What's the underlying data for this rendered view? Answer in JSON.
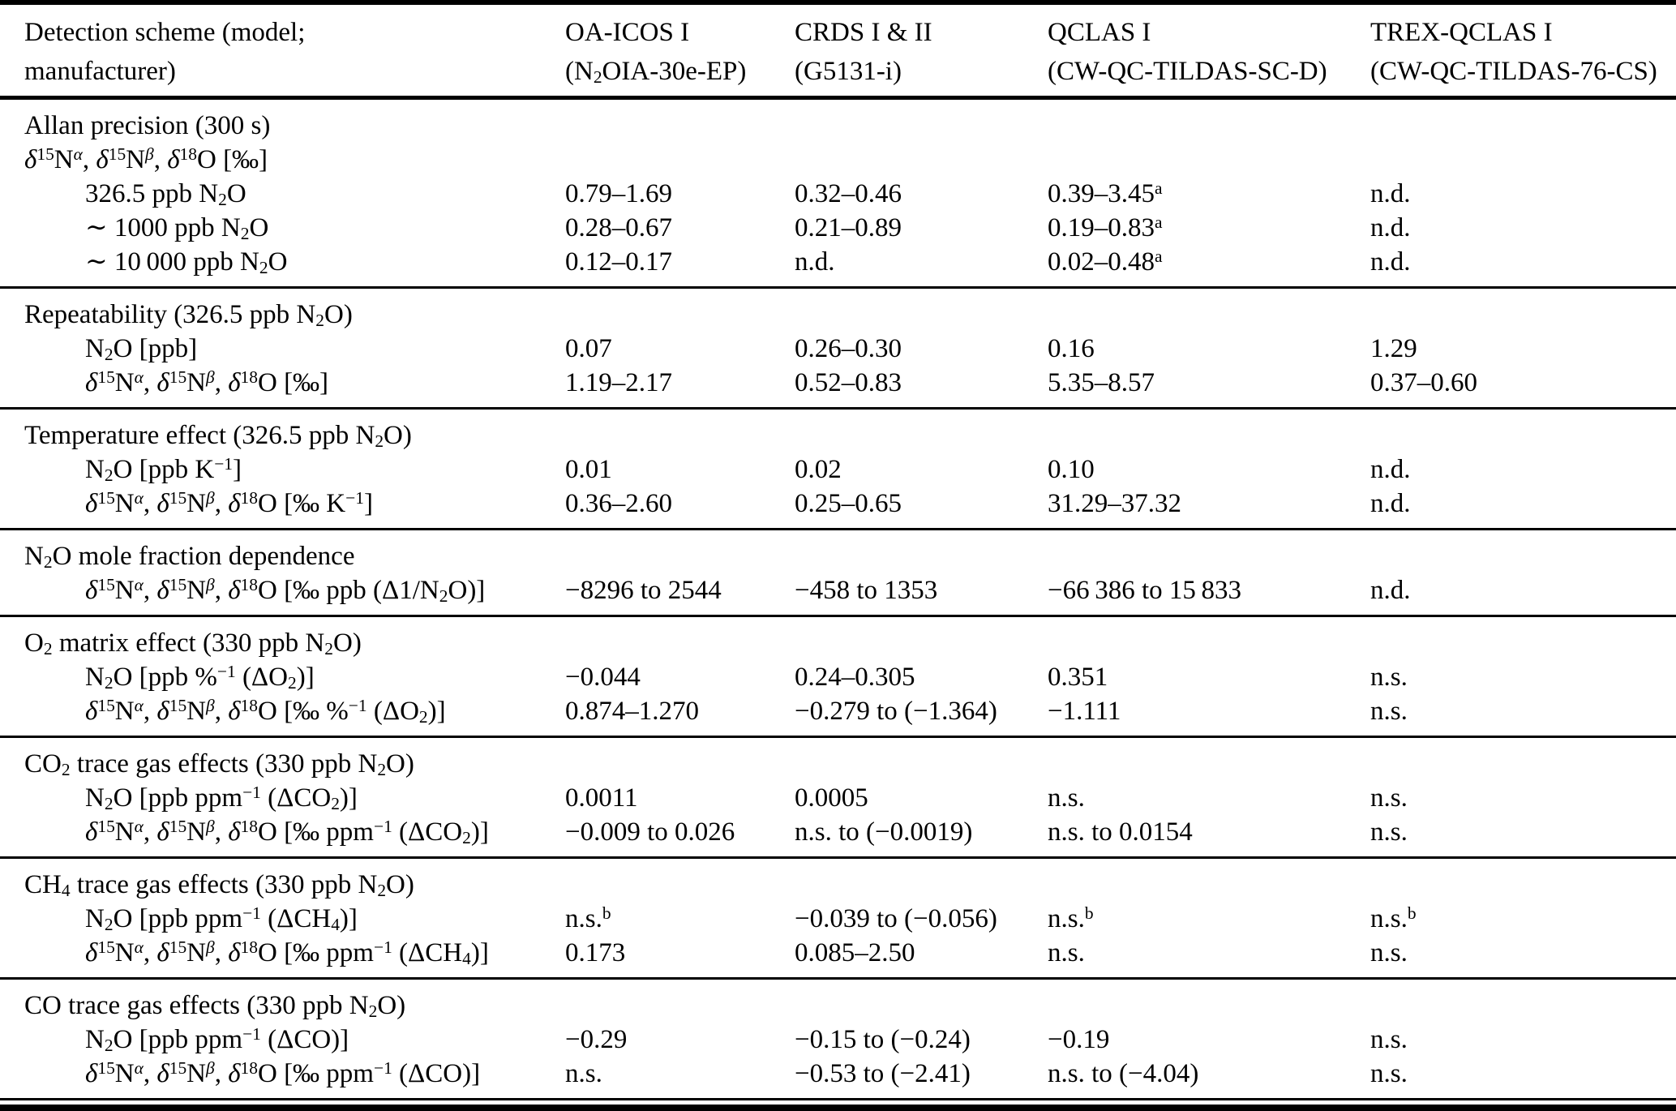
{
  "colors": {
    "background": "#ffffff",
    "text": "#000000",
    "rule": "#000000"
  },
  "table": {
    "header": [
      {
        "line1": "Detection scheme (model;",
        "line2": "manufacturer)"
      },
      {
        "line1": "OA-ICOS I",
        "line2": "(N<sub>2</sub>OIA-30e-EP)"
      },
      {
        "line1": "CRDS I & II",
        "line2": "(G5131-i)"
      },
      {
        "line1": "QCLAS I",
        "line2": "(CW-QC-TILDAS-SC-D)"
      },
      {
        "line1": "TREX-QCLAS I",
        "line2": "(CW-QC-TILDAS-76-CS)"
      }
    ],
    "sections": [
      {
        "id": "allan-precision",
        "title": "Allan precision (300 s)",
        "subtitle": "<i>δ</i><sup>15</sup>N<sup><i>α</i></sup>, <i>δ</i><sup>15</sup>N<sup><i>β</i></sup>, <i>δ</i><sup>18</sup>O [‰]",
        "rows": [
          {
            "label": "326.5 ppb N<sub>2</sub>O",
            "values": [
              "0.79–1.69",
              "0.32–0.46",
              "0.39–3.45<sup>a</sup>",
              "n.d."
            ]
          },
          {
            "label": "∼ 1000 ppb N<sub>2</sub>O",
            "values": [
              "0.28–0.67",
              "0.21–0.89",
              "0.19–0.83<sup>a</sup>",
              "n.d."
            ]
          },
          {
            "label": "∼ 10&#8201;000 ppb N<sub>2</sub>O",
            "values": [
              "0.12–0.17",
              "n.d.",
              "0.02–0.48<sup>a</sup>",
              "n.d."
            ]
          }
        ]
      },
      {
        "id": "repeatability",
        "title": "Repeatability (326.5 ppb N<sub>2</sub>O)",
        "rows": [
          {
            "label": "N<sub>2</sub>O [ppb]",
            "values": [
              "0.07",
              "0.26–0.30",
              "0.16",
              "1.29"
            ]
          },
          {
            "label": "<i>δ</i><sup>15</sup>N<sup><i>α</i></sup>, <i>δ</i><sup>15</sup>N<sup><i>β</i></sup>, <i>δ</i><sup>18</sup>O [‰]",
            "values": [
              "1.19–2.17",
              "0.52–0.83",
              "5.35–8.57",
              "0.37–0.60"
            ]
          }
        ]
      },
      {
        "id": "temperature-effect",
        "title": "Temperature effect (326.5 ppb N<sub>2</sub>O)",
        "rows": [
          {
            "label": "N<sub>2</sub>O [ppb K<sup>−1</sup>]",
            "values": [
              "0.01",
              "0.02",
              "0.10",
              "n.d."
            ]
          },
          {
            "label": "<i>δ</i><sup>15</sup>N<sup><i>α</i></sup>, <i>δ</i><sup>15</sup>N<sup><i>β</i></sup>, <i>δ</i><sup>18</sup>O [‰ K<sup>−1</sup>]",
            "values": [
              "0.36–2.60",
              "0.25–0.65",
              "31.29–37.32",
              "n.d."
            ]
          }
        ]
      },
      {
        "id": "n2o-mole-fraction-dependence",
        "title": "N<sub>2</sub>O mole fraction dependence",
        "rows": [
          {
            "label": "<i>δ</i><sup>15</sup>N<sup><i>α</i></sup>, <i>δ</i><sup>15</sup>N<sup><i>β</i></sup>, <i>δ</i><sup>18</sup>O [‰ ppb (Δ1/N<sub>2</sub>O)]",
            "values": [
              "−8296 to 2544",
              "−458 to 1353",
              "−66&#8201;386 to 15&#8201;833",
              "n.d."
            ]
          }
        ]
      },
      {
        "id": "o2-matrix-effect",
        "title": "O<sub>2</sub> matrix effect (330 ppb N<sub>2</sub>O)",
        "rows": [
          {
            "label": "N<sub>2</sub>O [ppb %<sup>−1</sup> (ΔO<sub>2</sub>)]",
            "values": [
              "−0.044",
              "0.24–0.305",
              "0.351",
              "n.s."
            ]
          },
          {
            "label": "<i>δ</i><sup>15</sup>N<sup><i>α</i></sup>, <i>δ</i><sup>15</sup>N<sup><i>β</i></sup>, <i>δ</i><sup>18</sup>O [‰ %<sup>−1</sup> (ΔO<sub>2</sub>)]",
            "values": [
              "0.874–1.270",
              "−0.279 to (−1.364)",
              "−1.111",
              "n.s."
            ]
          }
        ]
      },
      {
        "id": "co2-trace-gas-effects",
        "title": "CO<sub>2</sub> trace gas effects (330 ppb N<sub>2</sub>O)",
        "rows": [
          {
            "label": "N<sub>2</sub>O [ppb ppm<sup>−1</sup> (ΔCO<sub>2</sub>)]",
            "values": [
              "0.0011",
              "0.0005",
              "n.s.",
              "n.s."
            ]
          },
          {
            "label": "<i>δ</i><sup>15</sup>N<sup><i>α</i></sup>, <i>δ</i><sup>15</sup>N<sup><i>β</i></sup>, <i>δ</i><sup>18</sup>O [‰ ppm<sup>−1</sup> (ΔCO<sub>2</sub>)]",
            "values": [
              "−0.009 to 0.026",
              "n.s. to (−0.0019)",
              "n.s. to 0.0154",
              "n.s."
            ]
          }
        ]
      },
      {
        "id": "ch4-trace-gas-effects",
        "title": "CH<sub>4</sub> trace gas effects (330 ppb N<sub>2</sub>O)",
        "rows": [
          {
            "label": "N<sub>2</sub>O [ppb ppm<sup>−1</sup> (ΔCH<sub>4</sub>)]",
            "values": [
              "n.s.<sup>b</sup>",
              "−0.039 to (−0.056)",
              "n.s.<sup>b</sup>",
              "n.s.<sup>b</sup>"
            ]
          },
          {
            "label": "<i>δ</i><sup>15</sup>N<sup><i>α</i></sup>, <i>δ</i><sup>15</sup>N<sup><i>β</i></sup>, <i>δ</i><sup>18</sup>O [‰ ppm<sup>−1</sup> (ΔCH<sub>4</sub>)]",
            "values": [
              "0.173",
              "0.085–2.50",
              "n.s.",
              "n.s."
            ]
          }
        ]
      },
      {
        "id": "co-trace-gas-effects",
        "title": "CO trace gas effects (330 ppb N<sub>2</sub>O)",
        "rows": [
          {
            "label": "N<sub>2</sub>O [ppb ppm<sup>−1</sup> (ΔCO)]",
            "values": [
              "−0.29",
              "−0.15 to (−0.24)",
              "−0.19",
              "n.s."
            ]
          },
          {
            "label": "<i>δ</i><sup>15</sup>N<sup><i>α</i></sup>, <i>δ</i><sup>15</sup>N<sup><i>β</i></sup>, <i>δ</i><sup>18</sup>O [‰ ppm<sup>−1</sup> (ΔCO)]",
            "values": [
              "n.s.",
              "−0.53 to (−2.41)",
              "n.s. to (−4.04)",
              "n.s."
            ]
          }
        ]
      }
    ]
  }
}
